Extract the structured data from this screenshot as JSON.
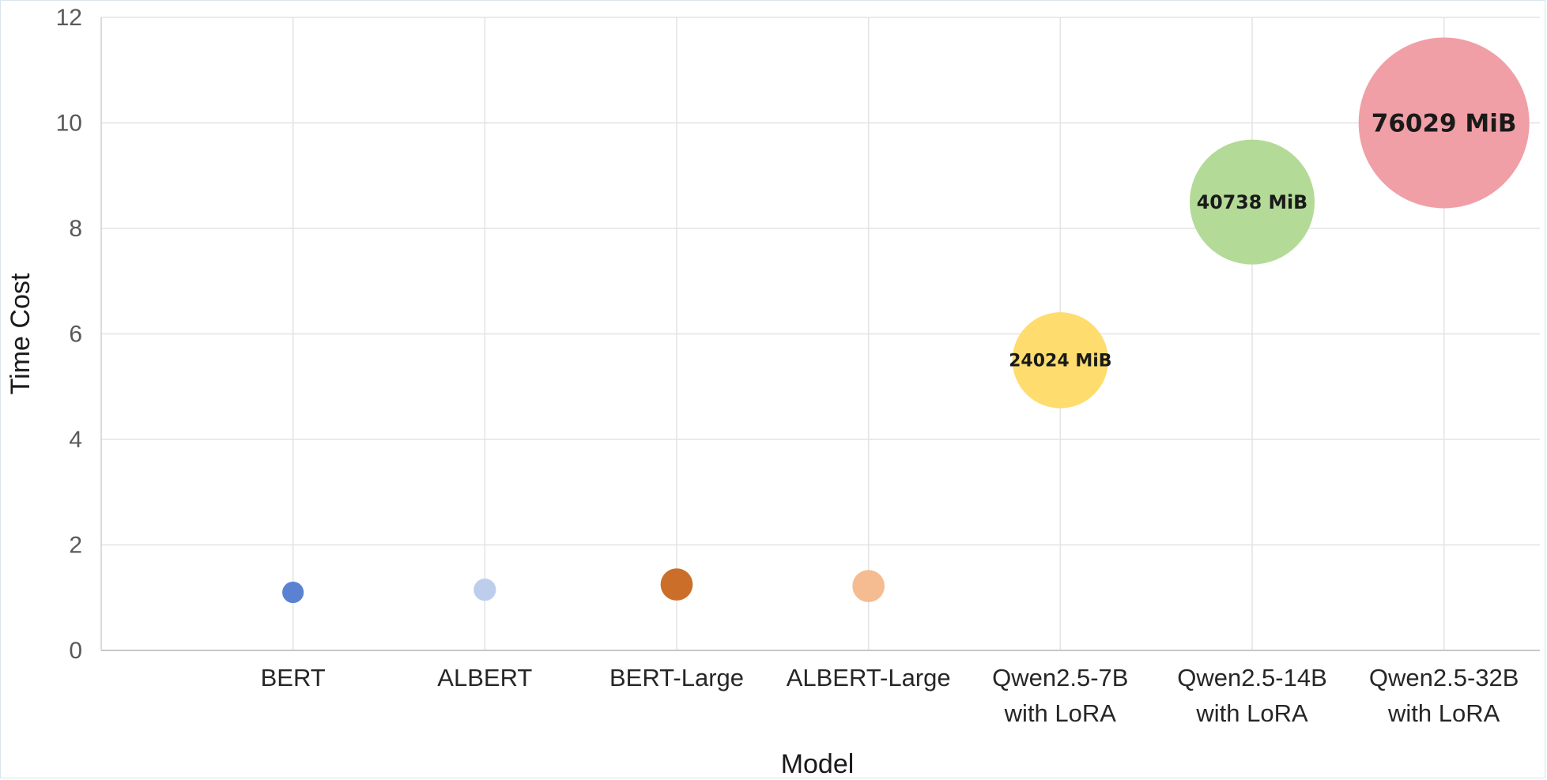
{
  "chart_data": {
    "type": "bubble",
    "title": "",
    "xlabel": "Model",
    "ylabel": "Time Cost",
    "ylim": [
      0,
      12
    ],
    "yticks": [
      0,
      2,
      4,
      6,
      8,
      10,
      12
    ],
    "grid": true,
    "legend": "none",
    "categories": [
      "BERT",
      "ALBERT",
      "BERT-Large",
      "ALBERT-Large",
      "Qwen2.5-7B with LoRA",
      "Qwen2.5-14B with LoRA",
      "Qwen2.5-32B with LoRA"
    ],
    "points": [
      {
        "model": "BERT",
        "label_lines": [
          "BERT"
        ],
        "time_cost": 1.1,
        "memory_mib": 1200,
        "color": "#5B82D2",
        "bubble_label": ""
      },
      {
        "model": "ALBERT",
        "label_lines": [
          "ALBERT"
        ],
        "time_cost": 1.15,
        "memory_mib": 1300,
        "color": "#BDCDEC",
        "bubble_label": ""
      },
      {
        "model": "BERT-Large",
        "label_lines": [
          "BERT-Large"
        ],
        "time_cost": 1.25,
        "memory_mib": 2700,
        "color": "#CB6E2A",
        "bubble_label": ""
      },
      {
        "model": "ALBERT-Large",
        "label_lines": [
          "ALBERT-Large"
        ],
        "time_cost": 1.22,
        "memory_mib": 2700,
        "color": "#F5BC91",
        "bubble_label": ""
      },
      {
        "model": "Qwen2.5-7B with LoRA",
        "label_lines": [
          "Qwen2.5-7B",
          "with LoRA"
        ],
        "time_cost": 5.5,
        "memory_mib": 24024,
        "color": "#FEDD6E",
        "bubble_label": "24024 MiB"
      },
      {
        "model": "Qwen2.5-14B with LoRA",
        "label_lines": [
          "Qwen2.5-14B",
          "with LoRA"
        ],
        "time_cost": 8.5,
        "memory_mib": 40738,
        "color": "#B3DA97",
        "bubble_label": "40738 MiB"
      },
      {
        "model": "Qwen2.5-32B with LoRA",
        "label_lines": [
          "Qwen2.5-32B",
          "with LoRA"
        ],
        "time_cost": 10.0,
        "memory_mib": 76029,
        "color": "#F09FA6",
        "bubble_label": "76029 MiB"
      }
    ]
  }
}
